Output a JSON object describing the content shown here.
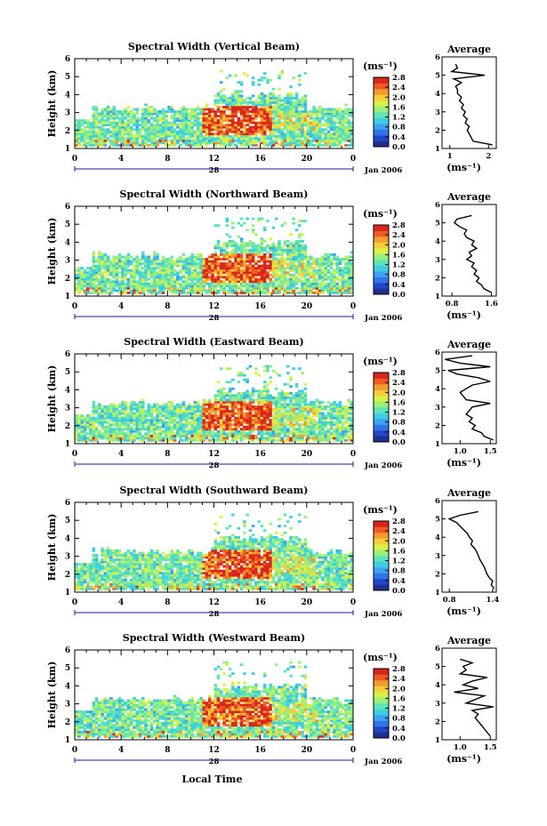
{
  "colors": {
    "colormap": [
      "#1f2f8f",
      "#2246c8",
      "#2f74e8",
      "#3ca3f0",
      "#3ccfe0",
      "#5fe3b8",
      "#9af07a",
      "#d8f04a",
      "#f5cf3a",
      "#f59a2c",
      "#ee5a22",
      "#d8261c"
    ],
    "axis": "#000000",
    "no_data": "#ffffff",
    "time_axis_line": "#1a1aa0"
  },
  "x_axis_label": "Local Time",
  "chart_data": [
    {
      "type": "heatmap",
      "title": "Spectral Width (Vertical Beam)",
      "ylabel": "Height (km)",
      "ylim": [
        1,
        6
      ],
      "yticks": [
        "1",
        "2",
        "3",
        "4",
        "5",
        "6"
      ],
      "xlim": [
        0,
        24
      ],
      "xticks": [
        "0",
        "4",
        "8",
        "12",
        "16",
        "20",
        "0"
      ],
      "date_label": "28",
      "month_label": "Jan 2006",
      "colorbar": {
        "unit": "(ms⁻¹)",
        "ticks": [
          "0.0",
          "0.4",
          "0.8",
          "1.2",
          "1.6",
          "2.0",
          "2.4",
          "2.8"
        ],
        "range": [
          0,
          2.8
        ]
      },
      "profile": {
        "title": "Average",
        "xlabel": "(ms⁻¹)",
        "xticks": [
          "1",
          "2"
        ],
        "xlim": [
          0.8,
          2.2
        ],
        "ylim": [
          1,
          6
        ],
        "heights": [
          1.2,
          1.4,
          1.6,
          1.8,
          2.0,
          2.2,
          2.4,
          2.6,
          2.8,
          3.0,
          3.2,
          3.4,
          3.6,
          3.8,
          4.0,
          4.2,
          4.4,
          4.6,
          4.8,
          5.0,
          5.2,
          5.4,
          5.6
        ],
        "values": [
          2.1,
          1.6,
          1.55,
          1.5,
          1.45,
          1.5,
          1.4,
          1.45,
          1.35,
          1.4,
          1.3,
          1.35,
          1.25,
          1.3,
          1.2,
          1.2,
          1.15,
          1.3,
          1.1,
          1.9,
          1.05,
          1.2,
          1.15
        ]
      }
    },
    {
      "type": "heatmap",
      "title": "Spectral Width (Northward Beam)",
      "ylabel": "Height (km)",
      "ylim": [
        1,
        6
      ],
      "yticks": [
        "1",
        "2",
        "3",
        "4",
        "5",
        "6"
      ],
      "xlim": [
        0,
        24
      ],
      "xticks": [
        "0",
        "4",
        "8",
        "12",
        "16",
        "20",
        "0"
      ],
      "date_label": "28",
      "month_label": "Jan 2006",
      "colorbar": {
        "unit": "(ms⁻¹)",
        "ticks": [
          "0.0",
          "0.4",
          "0.8",
          "1.2",
          "1.6",
          "2.0",
          "2.4",
          "2.8"
        ],
        "range": [
          0,
          2.8
        ]
      },
      "profile": {
        "title": "Average",
        "xlabel": "(ms⁻¹)",
        "xticks": [
          "0.8",
          "1.6"
        ],
        "xlim": [
          0.6,
          1.7
        ],
        "ylim": [
          1,
          6
        ],
        "heights": [
          1.2,
          1.4,
          1.6,
          1.8,
          2.0,
          2.2,
          2.4,
          2.6,
          2.8,
          3.0,
          3.2,
          3.4,
          3.6,
          3.8,
          4.0,
          4.2,
          4.4,
          4.6,
          4.8,
          5.0,
          5.2,
          5.4
        ],
        "values": [
          1.6,
          1.45,
          1.4,
          1.3,
          1.35,
          1.25,
          1.3,
          1.2,
          1.25,
          1.1,
          1.2,
          1.15,
          1.3,
          1.2,
          1.25,
          1.1,
          1.05,
          1.1,
          0.95,
          0.85,
          0.9,
          1.2
        ]
      }
    },
    {
      "type": "heatmap",
      "title": "Spectral Width (Eastward Beam)",
      "ylabel": "Height (km)",
      "ylim": [
        1,
        6
      ],
      "yticks": [
        "1",
        "2",
        "3",
        "4",
        "5",
        "6"
      ],
      "xlim": [
        0,
        24
      ],
      "xticks": [
        "0",
        "4",
        "8",
        "12",
        "16",
        "20",
        "0"
      ],
      "date_label": "28",
      "month_label": "Jan 2006",
      "colorbar": {
        "unit": "(ms⁻¹)",
        "ticks": [
          "0.0",
          "0.4",
          "0.8",
          "1.2",
          "1.6",
          "2.0",
          "2.4",
          "2.8"
        ],
        "range": [
          0,
          2.8
        ]
      },
      "profile": {
        "title": "Average",
        "xlabel": "(ms⁻¹)",
        "xticks": [
          "1.0",
          "1.5"
        ],
        "xlim": [
          0.7,
          1.6
        ],
        "ylim": [
          1,
          6
        ],
        "heights": [
          1.2,
          1.4,
          1.6,
          1.8,
          2.0,
          2.2,
          2.4,
          2.6,
          2.8,
          3.0,
          3.2,
          3.4,
          3.6,
          3.8,
          4.0,
          4.2,
          4.4,
          4.6,
          4.8,
          5.0,
          5.2,
          5.4,
          5.6,
          5.8
        ],
        "values": [
          1.55,
          1.4,
          1.35,
          1.2,
          1.25,
          1.15,
          1.2,
          1.1,
          1.15,
          1.2,
          1.5,
          1.1,
          1.05,
          1.0,
          1.1,
          1.2,
          1.5,
          1.3,
          0.95,
          0.8,
          1.5,
          1.0,
          0.75,
          1.2
        ]
      }
    },
    {
      "type": "heatmap",
      "title": "Spectral Width (Southward Beam)",
      "ylabel": "Height (km)",
      "ylim": [
        1,
        6
      ],
      "yticks": [
        "1",
        "2",
        "3",
        "4",
        "5",
        "6"
      ],
      "xlim": [
        0,
        24
      ],
      "xticks": [
        "0",
        "4",
        "8",
        "12",
        "16",
        "20",
        "0"
      ],
      "date_label": "28",
      "month_label": "Jan 2006",
      "colorbar": {
        "unit": "(ms⁻¹)",
        "ticks": [
          "0.0",
          "0.4",
          "0.8",
          "1.2",
          "1.6",
          "2.0",
          "2.4",
          "2.8"
        ],
        "range": [
          0,
          2.8
        ]
      },
      "profile": {
        "title": "Average",
        "xlabel": "(ms⁻¹)",
        "xticks": [
          "0.8",
          "1.4"
        ],
        "xlim": [
          0.7,
          1.45
        ],
        "ylim": [
          1,
          6
        ],
        "heights": [
          1.2,
          1.4,
          1.6,
          1.8,
          2.0,
          2.2,
          2.4,
          2.6,
          2.8,
          3.0,
          3.2,
          3.4,
          3.6,
          3.8,
          4.0,
          4.2,
          4.4,
          4.6,
          4.8,
          5.0,
          5.2,
          5.4
        ],
        "values": [
          1.42,
          1.38,
          1.4,
          1.35,
          1.32,
          1.3,
          1.28,
          1.25,
          1.22,
          1.2,
          1.18,
          1.15,
          1.1,
          1.12,
          1.08,
          1.05,
          1.0,
          0.95,
          0.9,
          0.8,
          0.95,
          1.2
        ]
      }
    },
    {
      "type": "heatmap",
      "title": "Spectral Width (Westward Beam)",
      "ylabel": "Height (km)",
      "ylim": [
        1,
        6
      ],
      "yticks": [
        "1",
        "2",
        "3",
        "4",
        "5",
        "6"
      ],
      "xlim": [
        0,
        24
      ],
      "xticks": [
        "0",
        "4",
        "8",
        "12",
        "16",
        "20",
        "0"
      ],
      "date_label": "28",
      "month_label": "Jan 2006",
      "colorbar": {
        "unit": "(ms⁻¹)",
        "ticks": [
          "0.0",
          "0.4",
          "0.8",
          "1.2",
          "1.6",
          "2.0",
          "2.4",
          "2.8"
        ],
        "range": [
          0,
          2.8
        ]
      },
      "profile": {
        "title": "Average",
        "xlabel": "(ms⁻¹)",
        "xticks": [
          "1.0",
          "1.5"
        ],
        "xlim": [
          0.7,
          1.6
        ],
        "ylim": [
          1,
          6
        ],
        "heights": [
          1.2,
          1.4,
          1.6,
          1.8,
          2.0,
          2.2,
          2.4,
          2.6,
          2.8,
          3.0,
          3.2,
          3.4,
          3.6,
          3.8,
          4.0,
          4.2,
          4.4,
          4.6,
          4.8,
          5.0,
          5.2,
          5.4
        ],
        "values": [
          1.5,
          1.45,
          1.4,
          1.35,
          1.3,
          1.25,
          1.3,
          1.2,
          1.55,
          1.1,
          1.25,
          1.4,
          0.9,
          1.3,
          1.05,
          1.2,
          1.45,
          1.0,
          1.1,
          1.05,
          1.2,
          1.0
        ]
      }
    }
  ]
}
